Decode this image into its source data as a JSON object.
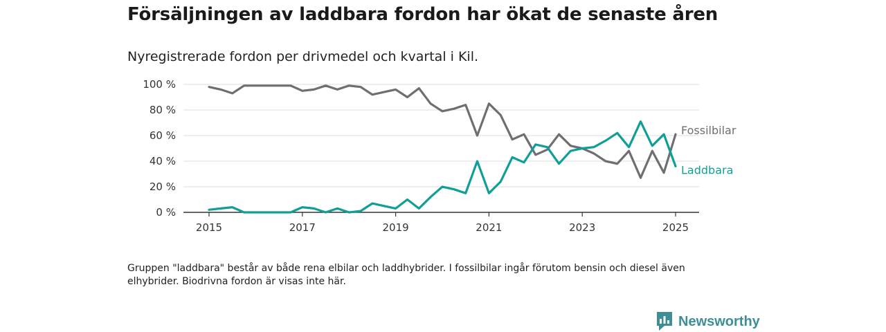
{
  "title": "Försäljningen av laddbara fordon har ökat de senaste åren",
  "subtitle": "Nyregistrerade fordon per drivmedel och kvartal i Kil.",
  "note": "Gruppen \"laddbara\" består av både rena elbilar och laddhybrider. I fossilbilar ingår förutom bensin och diesel även elhybrider. Biodrivna fordon är visas inte här.",
  "brand": {
    "name": "Newsworthy",
    "icon": "newsworthy-logo-icon",
    "color": "#3d8f95"
  },
  "chart_data": {
    "type": "line",
    "title": "Försäljningen av laddbara fordon har ökat de senaste åren",
    "subtitle": "Nyregistrerade fordon per drivmedel och kvartal i Kil.",
    "xlabel": "",
    "ylabel": "",
    "x_ticks": [
      "2015",
      "2017",
      "2019",
      "2021",
      "2023",
      "2025"
    ],
    "y_ticks": [
      "0 %",
      "20 %",
      "40 %",
      "60 %",
      "80 %",
      "100 %"
    ],
    "xlim": [
      2015,
      2025
    ],
    "ylim": [
      0,
      100
    ],
    "grid": "horizontal",
    "legend": "direct labels at line ends",
    "x": [
      2015.0,
      2015.25,
      2015.5,
      2015.75,
      2016.0,
      2016.25,
      2016.5,
      2016.75,
      2017.0,
      2017.25,
      2017.5,
      2017.75,
      2018.0,
      2018.25,
      2018.5,
      2018.75,
      2019.0,
      2019.25,
      2019.5,
      2019.75,
      2020.0,
      2020.25,
      2020.5,
      2020.75,
      2021.0,
      2021.25,
      2021.5,
      2021.75,
      2022.0,
      2022.25,
      2022.5,
      2022.75,
      2023.0,
      2023.25,
      2023.5,
      2023.75,
      2024.0,
      2024.25,
      2024.5,
      2024.75,
      2025.0
    ],
    "series": [
      {
        "name": "Fossilbilar",
        "color": "#6e6e73",
        "values": [
          98,
          96,
          93,
          99,
          99,
          99,
          99,
          99,
          95,
          96,
          99,
          96,
          99,
          98,
          92,
          94,
          96,
          90,
          97,
          85,
          79,
          81,
          84,
          60,
          85,
          76,
          57,
          61,
          45,
          49,
          61,
          52,
          50,
          46,
          40,
          38,
          48,
          27,
          48,
          31,
          61
        ]
      },
      {
        "name": "Laddbara",
        "color": "#0f9f96",
        "values": [
          2,
          3,
          4,
          0,
          0,
          0,
          0,
          0,
          4,
          3,
          0,
          3,
          0,
          1,
          7,
          5,
          3,
          10,
          3,
          12,
          20,
          18,
          15,
          40,
          15,
          24,
          43,
          39,
          53,
          51,
          38,
          48,
          50,
          51,
          56,
          62,
          51,
          71,
          52,
          61,
          36
        ]
      }
    ]
  }
}
